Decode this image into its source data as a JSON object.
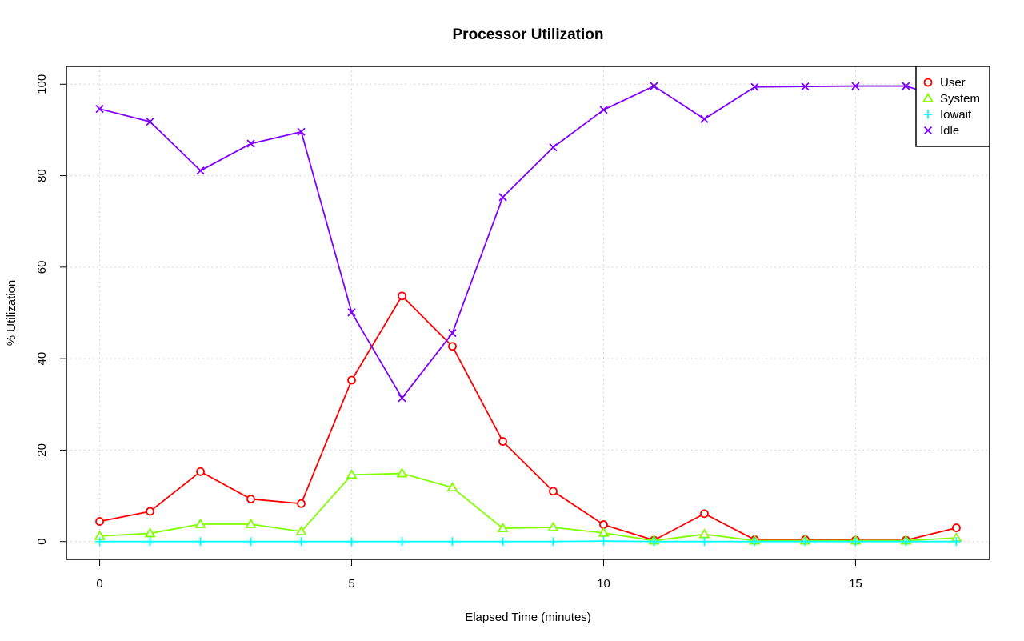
{
  "chart_data": {
    "type": "line",
    "title": "Processor Utilization",
    "xlabel": "Elapsed Time (minutes)",
    "ylabel": "% Utilization",
    "xlim": [
      -0.66,
      17.66
    ],
    "ylim": [
      -3.9,
      103.9
    ],
    "x_ticks": [
      0,
      5,
      10,
      15
    ],
    "y_ticks": [
      0,
      20,
      40,
      60,
      80,
      100
    ],
    "grid": true,
    "legend_position": "top-right",
    "x": [
      0,
      1,
      2,
      3,
      4,
      5,
      6,
      7,
      8,
      9,
      10,
      11,
      12,
      13,
      14,
      15,
      16,
      17
    ],
    "series": [
      {
        "name": "User",
        "color": "#ff0000",
        "marker": "circle",
        "values": [
          4.4,
          6.6,
          15.3,
          9.3,
          8.3,
          35.3,
          53.7,
          42.7,
          21.9,
          11.0,
          3.7,
          0.3,
          6.1,
          0.4,
          0.4,
          0.3,
          0.3,
          3.0
        ]
      },
      {
        "name": "System",
        "color": "#80ff00",
        "marker": "triangle",
        "values": [
          1.2,
          1.8,
          3.8,
          3.8,
          2.2,
          14.6,
          14.9,
          11.8,
          2.9,
          3.1,
          1.9,
          0.2,
          1.6,
          0.2,
          0.2,
          0.2,
          0.2,
          0.8
        ]
      },
      {
        "name": "Iowait",
        "color": "#00ffff",
        "marker": "plus",
        "values": [
          0.0,
          0.0,
          0.0,
          0.0,
          0.0,
          0.0,
          0.0,
          0.0,
          0.0,
          0.0,
          0.1,
          0.0,
          0.0,
          0.0,
          0.0,
          0.0,
          0.0,
          0.0
        ]
      },
      {
        "name": "Idle",
        "color": "#8000ff",
        "marker": "cross",
        "values": [
          94.6,
          91.8,
          81.1,
          87.0,
          89.6,
          50.1,
          31.4,
          45.6,
          75.3,
          86.2,
          94.4,
          99.6,
          92.4,
          99.4,
          99.5,
          99.6,
          99.6,
          96.2
        ]
      }
    ]
  }
}
